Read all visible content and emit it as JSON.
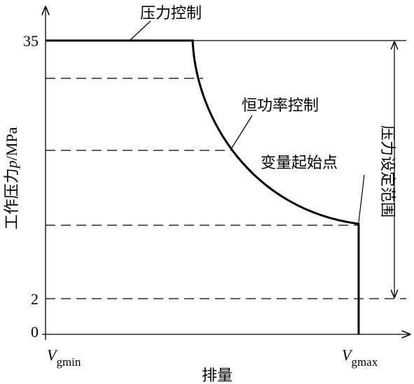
{
  "diagram": {
    "y_axis_label": {
      "text": "工作压力",
      "symbol": "p",
      "unit": "/MPa"
    },
    "x_axis_label": "排量",
    "y_ticks": [
      "35",
      "2",
      "0"
    ],
    "x_ticks": [
      {
        "symbol": "V",
        "subscript": "gmin"
      },
      {
        "symbol": "V",
        "subscript": "gmax"
      }
    ],
    "annotations": {
      "pressure_control": "压力控制",
      "constant_power": "恒功率控制",
      "variable_start": "变量起始点",
      "pressure_range": "压力设定范围"
    }
  }
}
